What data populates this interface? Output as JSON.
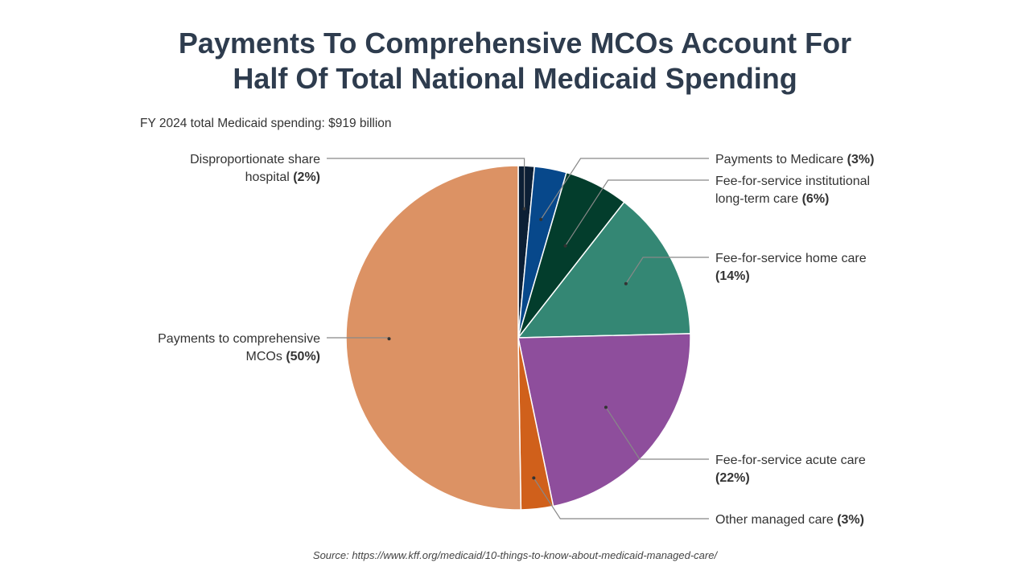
{
  "title_line1": "Payments To Comprehensive MCOs Account For",
  "title_line2": "Half Of Total National Medicaid Spending",
  "subtitle": "FY 2024 total Medicaid spending: $919 billion",
  "source": "Source: https://www.kff.org/medicaid/10-things-to-know-about-medicaid-managed-care/",
  "chart_data": {
    "type": "pie",
    "title": "Payments To Comprehensive MCOs Account For Half Of Total National Medicaid Spending",
    "subtitle": "FY 2024 total Medicaid spending: $919 billion",
    "start": "top",
    "direction": "clockwise",
    "slices": [
      {
        "label": "Disproportionate share hospital",
        "lines": [
          "Disproportionate share",
          "hospital"
        ],
        "pct_label": "(2%)",
        "value": 1.5,
        "color": "#0c1f35",
        "side": "left"
      },
      {
        "label": "Payments to Medicare",
        "lines": [
          "Payments to Medicare"
        ],
        "pct_label": "(3%)",
        "value": 3,
        "color": "#07488b",
        "side": "right"
      },
      {
        "label": "Fee-for-service institutional long-term care",
        "lines": [
          "Fee-for-service institutional",
          "long-term care"
        ],
        "pct_label": "(6%)",
        "value": 6,
        "color": "#033d2c",
        "side": "right"
      },
      {
        "label": "Fee-for-service home care",
        "lines": [
          "Fee-for-service home care",
          ""
        ],
        "pct_label": "(14%)",
        "value": 14,
        "color": "#348774",
        "side": "right"
      },
      {
        "label": "Fee-for-service acute care",
        "lines": [
          "Fee-for-service acute care",
          ""
        ],
        "pct_label": "(22%)",
        "value": 22,
        "color": "#8e4e9c",
        "side": "right"
      },
      {
        "label": "Other managed care",
        "lines": [
          "Other managed care"
        ],
        "pct_label": "(3%)",
        "value": 3,
        "color": "#d0601b",
        "side": "right"
      },
      {
        "label": "Payments to comprehensive MCOs",
        "lines": [
          "Payments to comprehensive",
          "MCOs"
        ],
        "pct_label": "(50%)",
        "value": 50,
        "color": "#dc9264",
        "side": "left"
      }
    ]
  }
}
